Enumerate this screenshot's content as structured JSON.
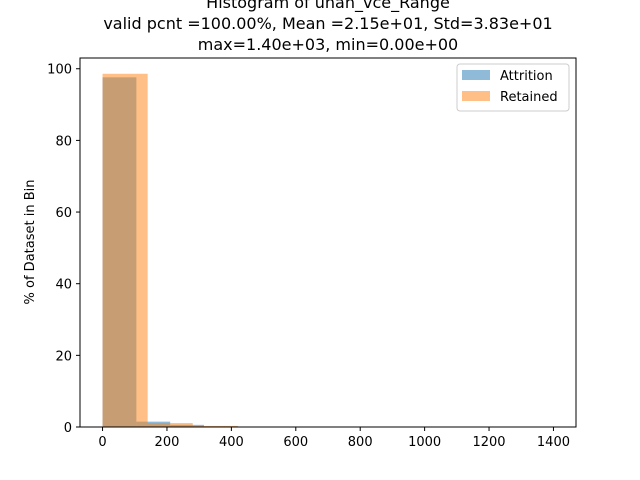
{
  "chart_data": {
    "type": "histogram",
    "title_lines": [
      "Histogram of uhan_vce_Range",
      "valid pcnt =100.00%, Mean =2.15e+01, Std=3.83e+01",
      "max=1.40e+03, min=0.00e+00"
    ],
    "xlabel": "",
    "ylabel": "% of Dataset in Bin",
    "xlim": [
      -70,
      1470
    ],
    "ylim": [
      0,
      103
    ],
    "xticks": [
      0,
      200,
      400,
      600,
      800,
      1000,
      1200,
      1400
    ],
    "yticks": [
      0,
      20,
      40,
      60,
      80,
      100
    ],
    "legend_position": "upper right",
    "series": [
      {
        "name": "Attrition",
        "color": "#1f77b4",
        "alpha": 0.5,
        "bin_edges": [
          0,
          105,
          210,
          315,
          420
        ],
        "values": [
          97.6,
          1.5,
          0.6,
          0.2
        ]
      },
      {
        "name": "Retained",
        "color": "#ff7f0e",
        "alpha": 0.5,
        "bin_edges": [
          0,
          140,
          280,
          420
        ],
        "values": [
          98.6,
          1.1,
          0.3
        ]
      }
    ]
  }
}
